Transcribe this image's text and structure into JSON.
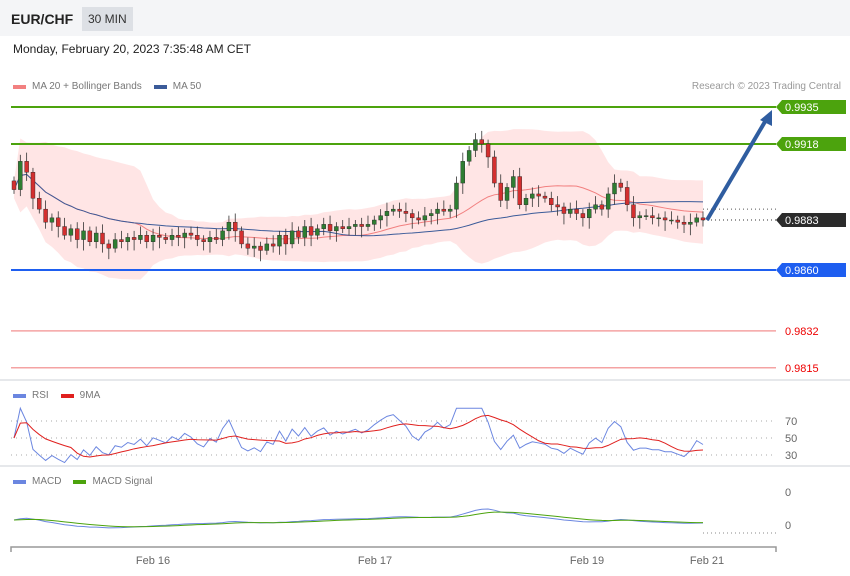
{
  "header": {
    "symbol": "EUR/CHF",
    "timeframe": "30 MIN",
    "datetime": "Monday, February 20, 2023 7:35:48 AM CET"
  },
  "legend": {
    "bollinger": "MA 20 + Bollinger Bands",
    "ma50": "MA 50",
    "rsi": "RSI",
    "rsi_ma": "9MA",
    "macd": "MACD",
    "macd_signal": "MACD Signal"
  },
  "copyright": "Research © 2023 Trading Central",
  "colors": {
    "up": "#2e7d32",
    "down": "#d32f2f",
    "band": "#ffdede",
    "ma20": "#f28080",
    "ma50": "#3b5b99",
    "resistance": "#4ca30d",
    "support": "#1e5ef0",
    "support2": "#e53935",
    "arrow": "#2f5da0",
    "rsi": "#6b86e0",
    "rsi_ma": "#e0201e",
    "macd": "#6b86e0",
    "signal": "#4ca30d"
  },
  "chart_data": {
    "type": "candlestick",
    "price_range": [
      0.9805,
      0.9945
    ],
    "closes": [
      0.9897,
      0.991,
      0.9905,
      0.9893,
      0.9888,
      0.9882,
      0.9884,
      0.988,
      0.9876,
      0.9879,
      0.9874,
      0.9878,
      0.9873,
      0.9877,
      0.9872,
      0.987,
      0.9874,
      0.9873,
      0.9875,
      0.9874,
      0.9876,
      0.9873,
      0.9876,
      0.9875,
      0.9874,
      0.9876,
      0.9875,
      0.9877,
      0.9876,
      0.9874,
      0.9873,
      0.9875,
      0.9874,
      0.9878,
      0.9882,
      0.9878,
      0.9872,
      0.987,
      0.9871,
      0.9869,
      0.9872,
      0.9871,
      0.9876,
      0.9872,
      0.9878,
      0.9875,
      0.988,
      0.9876,
      0.9879,
      0.9881,
      0.9878,
      0.988,
      0.9879,
      0.988,
      0.9881,
      0.988,
      0.9881,
      0.9883,
      0.9885,
      0.9887,
      0.9888,
      0.9887,
      0.9886,
      0.9884,
      0.9883,
      0.9885,
      0.9886,
      0.9888,
      0.9887,
      0.9888,
      0.99,
      0.991,
      0.9915,
      0.992,
      0.9918,
      0.9912,
      0.99,
      0.9892,
      0.9898,
      0.9903,
      0.989,
      0.9893,
      0.9895,
      0.9894,
      0.9893,
      0.989,
      0.9889,
      0.9886,
      0.9888,
      0.9886,
      0.9884,
      0.9888,
      0.989,
      0.9888,
      0.9895,
      0.99,
      0.9898,
      0.989,
      0.9884,
      0.9885,
      0.9885,
      0.9884,
      0.9884,
      0.9883,
      0.9883,
      0.9882,
      0.9881,
      0.9882,
      0.9884,
      0.9883
    ],
    "levels": [
      {
        "label": "0.9935",
        "value": 0.9935,
        "kind": "resistance"
      },
      {
        "label": "0.9918",
        "value": 0.9918,
        "kind": "resistance"
      },
      {
        "label": "0.9883",
        "value": 0.9883,
        "kind": "current"
      },
      {
        "label": "0.9860",
        "value": 0.986,
        "kind": "support"
      },
      {
        "label": "0.9832",
        "value": 0.9832,
        "kind": "support2"
      },
      {
        "label": "0.9815",
        "value": 0.9815,
        "kind": "support2"
      }
    ],
    "target": 0.9935,
    "rsi_ticks": [
      "70",
      "50",
      "30"
    ],
    "macd_ticks": [
      "0",
      "0"
    ],
    "x_ticks": [
      "Feb 16",
      "Feb 17",
      "Feb 19",
      "Feb 21"
    ]
  }
}
